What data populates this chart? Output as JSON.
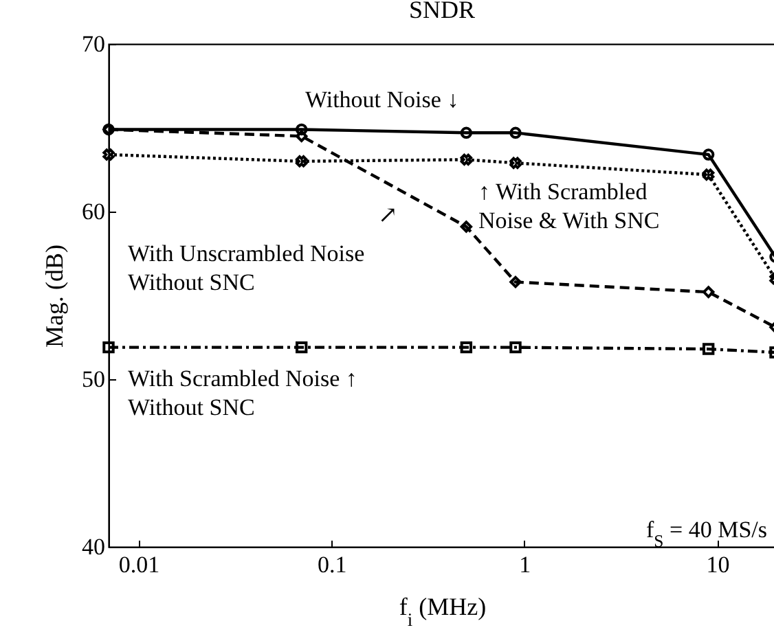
{
  "chart_data": {
    "type": "line",
    "title": "SNDR",
    "xlabel": "f$_{i}$ (MHz)",
    "ylabel": "Mag. (dB)",
    "log": "x",
    "x": [
      0.007,
      0.07,
      0.5,
      0.9,
      9,
      20
    ],
    "xlim": [
      0.007,
      20
    ],
    "xticks": [
      0.01,
      0.1,
      1,
      10
    ],
    "ylim": [
      40,
      70
    ],
    "yticks": [
      40,
      50,
      60,
      70
    ],
    "grid": false,
    "series": [
      {
        "color": "#000000",
        "marker": "circle",
        "line_style": "solid",
        "values": [
          64.9,
          64.9,
          64.7,
          64.7,
          63.4,
          57.3
        ]
      },
      {
        "color": "#000000",
        "marker": "cross",
        "line_style": "dotted",
        "values": [
          63.4,
          63.0,
          63.1,
          62.9,
          62.2,
          56.0
        ]
      },
      {
        "color": "#000000",
        "marker": "diamond",
        "line_style": "dashed",
        "values": [
          64.9,
          64.5,
          59.1,
          55.8,
          55.2,
          53.1
        ]
      },
      {
        "color": "#000000",
        "marker": "square",
        "line_style": "dashdot",
        "values": [
          51.9,
          51.9,
          51.9,
          51.9,
          51.8,
          51.6
        ]
      }
    ],
    "annotations": [
      "Without Noise ↓",
      "↑ With Scrambled\nNoise & With SNC",
      "↗",
      "With Unscrambled Noise\nWithout SNC",
      "With Scrambled Noise ↑\nWithout SNC",
      "f$_{S}$ = 40 MS/s"
    ]
  }
}
